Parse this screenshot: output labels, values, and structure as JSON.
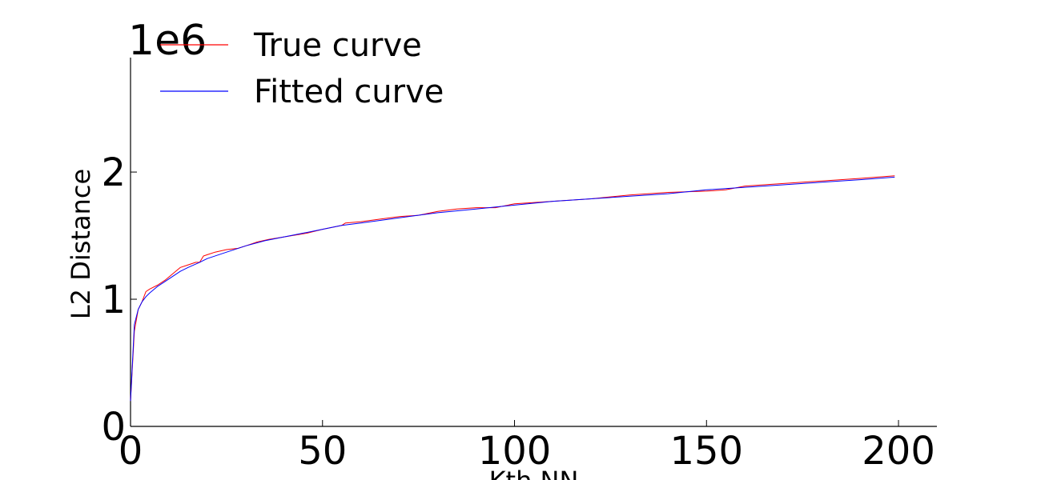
{
  "chart_data": {
    "type": "line",
    "title": "",
    "xlabel": "Kth NN",
    "ylabel": "L2 Distance",
    "y_multiplier_label": "1e6",
    "xlim": [
      0,
      210
    ],
    "ylim": [
      0,
      2.9
    ],
    "x_ticks": [
      0,
      50,
      100,
      150,
      200
    ],
    "x_tick_labels": [
      "0",
      "50",
      "100",
      "150",
      "200"
    ],
    "y_ticks": [
      0,
      1,
      2
    ],
    "y_tick_labels": [
      "0",
      "1",
      "2"
    ],
    "grid": false,
    "legend_position": "top-left",
    "series": [
      {
        "name": "True curve",
        "color": "#ff0000",
        "x": [
          0,
          1,
          2,
          3,
          4,
          5,
          7,
          9,
          11,
          13,
          15,
          17,
          18,
          19,
          20,
          22,
          25,
          28,
          30,
          33,
          36,
          40,
          44,
          46,
          50,
          55,
          56,
          60,
          65,
          70,
          75,
          80,
          85,
          90,
          95,
          100,
          110,
          120,
          130,
          140,
          150,
          155,
          160,
          170,
          180,
          190,
          199
        ],
        "y": [
          0.2,
          0.75,
          0.92,
          0.98,
          1.06,
          1.08,
          1.11,
          1.15,
          1.2,
          1.25,
          1.27,
          1.29,
          1.29,
          1.34,
          1.35,
          1.37,
          1.39,
          1.4,
          1.42,
          1.45,
          1.47,
          1.49,
          1.51,
          1.52,
          1.55,
          1.58,
          1.6,
          1.61,
          1.63,
          1.65,
          1.66,
          1.69,
          1.71,
          1.72,
          1.72,
          1.75,
          1.77,
          1.79,
          1.82,
          1.84,
          1.85,
          1.86,
          1.89,
          1.91,
          1.93,
          1.95,
          1.97
        ]
      },
      {
        "name": "Fitted curve",
        "color": "#0000ff",
        "x": [
          0,
          1,
          2,
          3,
          4,
          5,
          7,
          9,
          11,
          13,
          15,
          18,
          20,
          25,
          30,
          35,
          40,
          45,
          50,
          55,
          60,
          70,
          80,
          90,
          100,
          110,
          120,
          130,
          140,
          150,
          160,
          170,
          180,
          190,
          199
        ],
        "y": [
          0.2,
          0.8,
          0.92,
          0.98,
          1.02,
          1.05,
          1.1,
          1.14,
          1.18,
          1.22,
          1.25,
          1.29,
          1.32,
          1.37,
          1.42,
          1.46,
          1.49,
          1.52,
          1.55,
          1.58,
          1.6,
          1.64,
          1.68,
          1.71,
          1.74,
          1.77,
          1.79,
          1.81,
          1.83,
          1.86,
          1.88,
          1.9,
          1.92,
          1.94,
          1.96
        ]
      }
    ]
  }
}
